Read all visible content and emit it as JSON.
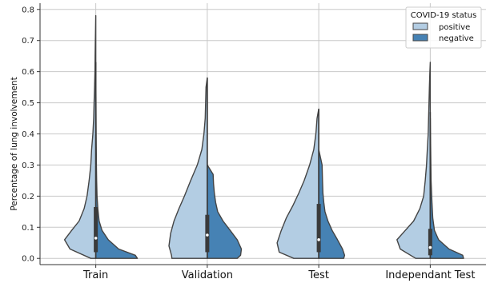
{
  "chart_data": {
    "type": "violin",
    "title": "",
    "xlabel": "",
    "ylabel": "Percentage of lung involvement",
    "ylim": [
      -0.02,
      0.82
    ],
    "yticks": [
      "0.0",
      "0.1",
      "0.2",
      "0.3",
      "0.4",
      "0.5",
      "0.6",
      "0.7",
      "0.8"
    ],
    "grid": true,
    "split": true,
    "categories": [
      "Train",
      "Validation",
      "Test",
      "Independant Test"
    ],
    "legend": {
      "title": "COVID-19 status",
      "placement": "top-right",
      "entries": [
        "positive",
        "negative"
      ]
    },
    "series": [
      {
        "name": "positive",
        "color": "#b3cde3",
        "side": "left",
        "groups": [
          {
            "y": [
              0,
              0.03,
              0.06,
              0.09,
              0.12,
              0.16,
              0.2,
              0.25,
              0.3,
              0.35,
              0.4,
              0.45,
              0.5,
              0.55,
              0.6,
              0.65,
              0.7,
              0.78
            ],
            "density": [
              0.12,
              0.62,
              0.75,
              0.58,
              0.4,
              0.28,
              0.21,
              0.16,
              0.12,
              0.1,
              0.07,
              0.05,
              0.04,
              0.03,
              0.02,
              0.015,
              0.01,
              0.0
            ]
          },
          {
            "y": [
              0,
              0.01,
              0.04,
              0.08,
              0.12,
              0.16,
              0.2,
              0.25,
              0.3,
              0.35,
              0.4,
              0.45,
              0.5,
              0.55,
              0.58
            ],
            "density": [
              0.85,
              0.86,
              0.92,
              0.88,
              0.8,
              0.68,
              0.55,
              0.4,
              0.24,
              0.13,
              0.08,
              0.05,
              0.04,
              0.03,
              0.0
            ]
          },
          {
            "y": [
              0,
              0.02,
              0.05,
              0.09,
              0.13,
              0.17,
              0.21,
              0.25,
              0.3,
              0.35,
              0.4,
              0.45,
              0.48
            ],
            "density": [
              0.6,
              0.95,
              1.0,
              0.9,
              0.78,
              0.62,
              0.48,
              0.35,
              0.22,
              0.12,
              0.07,
              0.04,
              0.0
            ]
          },
          {
            "y": [
              0,
              0.03,
              0.06,
              0.09,
              0.12,
              0.16,
              0.2,
              0.25,
              0.3,
              0.35,
              0.4,
              0.45,
              0.5,
              0.55,
              0.6,
              0.63
            ],
            "density": [
              0.35,
              0.72,
              0.8,
              0.6,
              0.4,
              0.25,
              0.16,
              0.12,
              0.09,
              0.07,
              0.05,
              0.04,
              0.03,
              0.02,
              0.01,
              0.0
            ]
          }
        ]
      },
      {
        "name": "negative",
        "color": "#4682b4",
        "side": "right",
        "groups": [
          {
            "y": [
              0,
              0.01,
              0.03,
              0.06,
              0.09,
              0.12,
              0.16,
              0.2,
              0.25,
              0.3,
              0.4,
              0.5,
              0.63
            ],
            "density": [
              1.0,
              0.95,
              0.55,
              0.3,
              0.15,
              0.08,
              0.05,
              0.03,
              0.02,
              0.015,
              0.01,
              0.005,
              0.0
            ]
          },
          {
            "y": [
              0,
              0.01,
              0.03,
              0.06,
              0.09,
              0.12,
              0.15,
              0.18,
              0.21,
              0.24,
              0.27,
              0.3
            ],
            "density": [
              0.72,
              0.8,
              0.82,
              0.72,
              0.55,
              0.38,
              0.25,
              0.2,
              0.17,
              0.15,
              0.14,
              0.0
            ]
          },
          {
            "y": [
              0,
              0.01,
              0.03,
              0.06,
              0.09,
              0.12,
              0.15,
              0.18,
              0.21,
              0.25,
              0.3,
              0.35
            ],
            "density": [
              0.6,
              0.62,
              0.57,
              0.45,
              0.32,
              0.22,
              0.15,
              0.12,
              0.1,
              0.09,
              0.08,
              0.0
            ]
          },
          {
            "y": [
              0,
              0.01,
              0.03,
              0.06,
              0.09,
              0.13,
              0.18,
              0.25,
              0.35,
              0.45
            ],
            "density": [
              0.8,
              0.78,
              0.45,
              0.2,
              0.1,
              0.06,
              0.04,
              0.02,
              0.01,
              0.0
            ]
          }
        ]
      }
    ],
    "box": [
      {
        "q1": 0.02,
        "q3": 0.165,
        "whisker_low": 0.0,
        "whisker_high": 0.63,
        "median": 0.065
      },
      {
        "q1": 0.02,
        "q3": 0.14,
        "whisker_low": 0.0,
        "whisker_high": 0.58,
        "median": 0.075
      },
      {
        "q1": 0.02,
        "q3": 0.175,
        "whisker_low": 0.0,
        "whisker_high": 0.48,
        "median": 0.06
      },
      {
        "q1": 0.01,
        "q3": 0.095,
        "whisker_low": 0.0,
        "whisker_high": 0.47,
        "median": 0.035
      }
    ]
  }
}
